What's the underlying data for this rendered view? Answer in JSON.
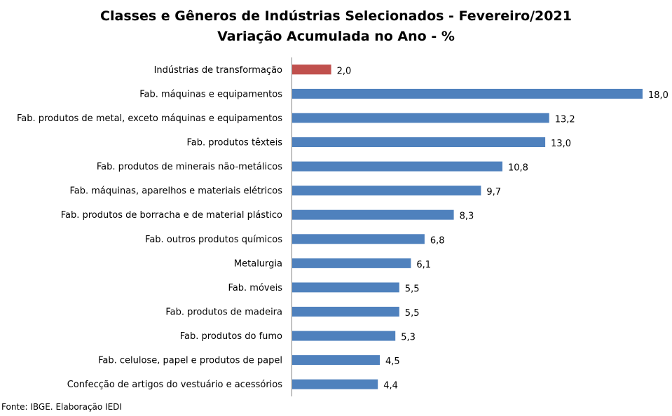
{
  "chart_data": {
    "type": "bar",
    "orientation": "horizontal",
    "title": "Classes e Gêneros de Indústrias Selecionados - Fevereiro/2021",
    "subtitle": "Variação Acumulada no Ano - %",
    "categories": [
      "Indústrias de transformação",
      "Fab. máquinas e equipamentos",
      "Fab. produtos de metal, exceto máquinas e equipamentos",
      "Fab. produtos têxteis",
      "Fab. produtos de minerais não-metálicos",
      "Fab. máquinas, aparelhos e materiais elétricos",
      "Fab. produtos de borracha e de material plástico",
      "Fab. outros produtos químicos",
      "Metalurgia",
      "Fab. móveis",
      "Fab. produtos de madeira",
      "Fab. produtos do fumo",
      "Fab. celulose, papel e produtos de papel",
      "Confecção de artigos do vestuário e acessórios"
    ],
    "values": [
      2.0,
      18.0,
      13.2,
      13.0,
      10.8,
      9.7,
      8.3,
      6.8,
      6.1,
      5.5,
      5.5,
      5.3,
      4.5,
      4.4
    ],
    "value_labels": [
      "2,0",
      "18,0",
      "13,2",
      "13,0",
      "10,8",
      "9,7",
      "8,3",
      "6,8",
      "6,1",
      "5,5",
      "5,5",
      "5,3",
      "4,5",
      "4,4"
    ],
    "xlim": [
      0,
      18
    ],
    "grid": false,
    "legend": "none",
    "colors": {
      "highlight": "#C0504D",
      "default": "#4F81BD",
      "axis": "#868686"
    },
    "highlight_index": 0
  },
  "source": "Fonte: IBGE. Elaboração IEDI"
}
